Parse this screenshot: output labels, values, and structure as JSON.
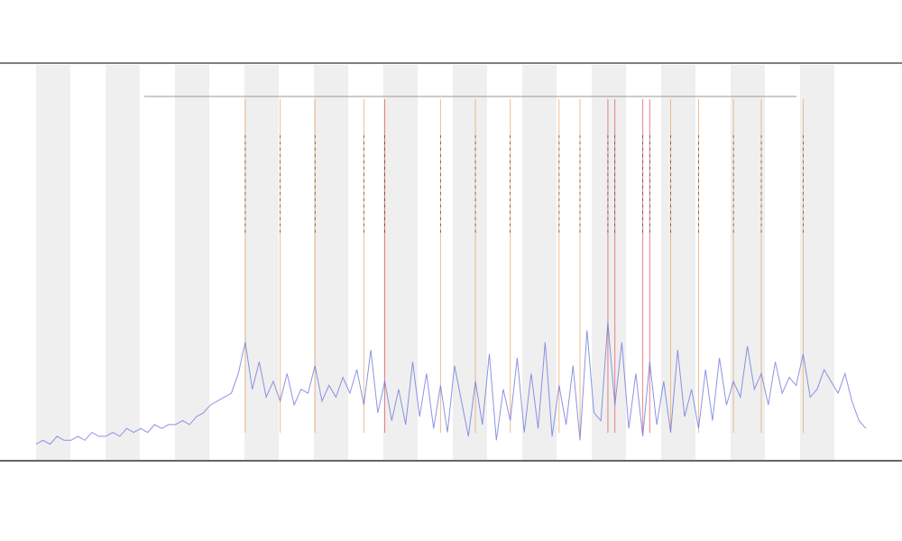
{
  "chart_data": {
    "type": "line",
    "xlim": [
      0,
      119
    ],
    "ylim": [
      0,
      100
    ],
    "series": [
      {
        "color": "#6f78e0",
        "values": [
          4,
          5,
          4,
          6,
          5,
          5,
          6,
          5,
          7,
          6,
          6,
          7,
          6,
          8,
          7,
          8,
          7,
          9,
          8,
          9,
          9,
          10,
          9,
          11,
          12,
          14,
          15,
          16,
          17,
          22,
          30,
          18,
          25,
          16,
          20,
          15,
          22,
          14,
          18,
          17,
          24,
          15,
          19,
          16,
          21,
          17,
          23,
          14,
          28,
          12,
          20,
          10,
          18,
          9,
          25,
          11,
          22,
          8,
          19,
          7,
          24,
          15,
          6,
          20,
          9,
          27,
          5,
          18,
          10,
          26,
          7,
          22,
          8,
          30,
          6,
          19,
          9,
          24,
          5,
          33,
          12,
          10,
          35,
          14,
          30,
          8,
          22,
          6,
          25,
          9,
          20,
          7,
          28,
          11,
          18,
          8,
          23,
          10,
          26,
          14,
          20,
          16,
          29,
          18,
          22,
          14,
          25,
          17,
          21,
          19,
          27,
          16,
          18,
          23,
          20,
          17,
          22,
          15,
          10,
          8
        ]
      }
    ],
    "events": [
      {
        "x": 30,
        "color": "#e8a060"
      },
      {
        "x": 35,
        "color": "#e8a060"
      },
      {
        "x": 40,
        "color": "#e8a060"
      },
      {
        "x": 47,
        "color": "#e8a060"
      },
      {
        "x": 50,
        "color": "#e05050"
      },
      {
        "x": 58,
        "color": "#e8a060"
      },
      {
        "x": 63,
        "color": "#e8a060"
      },
      {
        "x": 68,
        "color": "#e8a060"
      },
      {
        "x": 75,
        "color": "#e8a060"
      },
      {
        "x": 78,
        "color": "#e8a060"
      },
      {
        "x": 82,
        "color": "#e05050"
      },
      {
        "x": 83,
        "color": "#e05050"
      },
      {
        "x": 87,
        "color": "#e05050"
      },
      {
        "x": 88,
        "color": "#e05050"
      },
      {
        "x": 91,
        "color": "#e8a060"
      },
      {
        "x": 95,
        "color": "#e8a060"
      },
      {
        "x": 100,
        "color": "#e8a060"
      },
      {
        "x": 104,
        "color": "#e8a060"
      },
      {
        "x": 110,
        "color": "#e8a060"
      }
    ]
  }
}
